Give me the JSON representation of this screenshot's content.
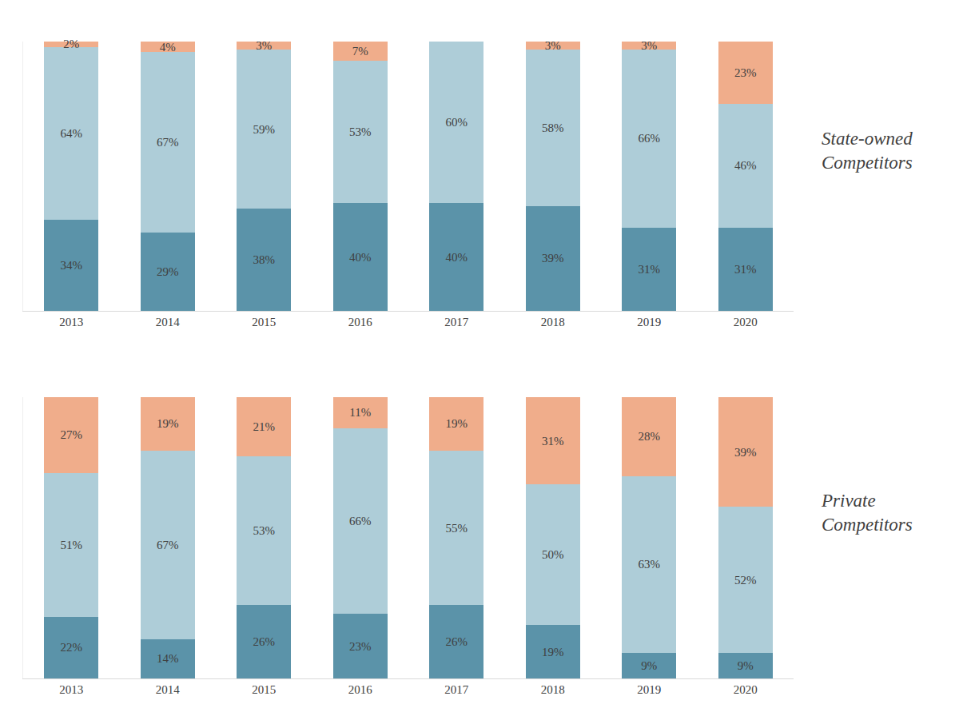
{
  "chart_data": [
    {
      "type": "bar",
      "title": "State-owned Competitors",
      "categories": [
        "2013",
        "2014",
        "2015",
        "2016",
        "2017",
        "2018",
        "2019",
        "2020"
      ],
      "stacked": true,
      "data_labels": true,
      "tick_labels": "x",
      "ylim": [
        0,
        100
      ],
      "series": [
        {
          "color": "#5b93a9",
          "values": [
            34,
            29,
            38,
            40,
            40,
            39,
            31,
            31
          ],
          "value_labels": [
            "34%",
            "29%",
            "38%",
            "40%",
            "40%",
            "39%",
            "31%",
            "31%"
          ]
        },
        {
          "color": "#aecdd8",
          "values": [
            64,
            67,
            59,
            53,
            60,
            58,
            66,
            46
          ],
          "value_labels": [
            "64%",
            "67%",
            "59%",
            "53%",
            "60%",
            "58%",
            "66%",
            "46%"
          ]
        },
        {
          "color": "#f0ad8b",
          "values": [
            2,
            4,
            3,
            7,
            null,
            3,
            3,
            23
          ],
          "value_labels": [
            "2%",
            "4%",
            "3%",
            "7%",
            null,
            "3%",
            "3%",
            "23%"
          ]
        }
      ]
    },
    {
      "type": "bar",
      "title": "Private Competitors",
      "categories": [
        "2013",
        "2014",
        "2015",
        "2016",
        "2017",
        "2018",
        "2019",
        "2020"
      ],
      "stacked": true,
      "data_labels": true,
      "tick_labels": "x",
      "ylim": [
        0,
        100
      ],
      "series": [
        {
          "color": "#5b93a9",
          "values": [
            22,
            14,
            26,
            23,
            26,
            19,
            9,
            9
          ],
          "value_labels": [
            "22%",
            "14%",
            "26%",
            "23%",
            "26%",
            "19%",
            "9%",
            "9%"
          ]
        },
        {
          "color": "#aecdd8",
          "values": [
            51,
            67,
            53,
            66,
            55,
            50,
            63,
            52
          ],
          "value_labels": [
            "51%",
            "67%",
            "53%",
            "66%",
            "55%",
            "50%",
            "63%",
            "52%"
          ]
        },
        {
          "color": "#f0ad8b",
          "values": [
            27,
            19,
            21,
            11,
            19,
            31,
            28,
            39
          ],
          "value_labels": [
            "27%",
            "19%",
            "21%",
            "11%",
            "19%",
            "31%",
            "28%",
            "39%"
          ]
        }
      ]
    }
  ]
}
